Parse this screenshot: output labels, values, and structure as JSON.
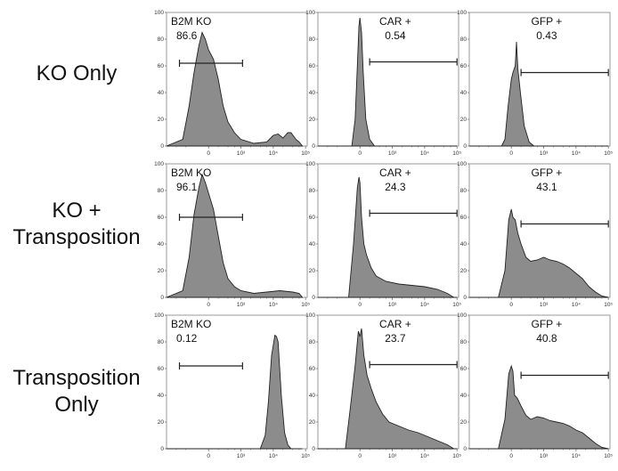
{
  "row_labels": [
    {
      "lines": [
        "KO Only"
      ]
    },
    {
      "lines": [
        "KO +",
        "Transposition"
      ]
    },
    {
      "lines": [
        "Transposition",
        "Only"
      ]
    }
  ],
  "chart_data": {
    "type": "histogram-grid",
    "y_ticks": [
      "0",
      "20",
      "40",
      "60",
      "80",
      "100"
    ],
    "x_tick_labels": {
      "B2M": [
        "0",
        "10³",
        "10⁴",
        "10⁵"
      ],
      "CAR": [
        "0",
        "10³",
        "10⁴",
        "10⁵"
      ],
      "GFP": [
        "0",
        "10³",
        "10⁴",
        "10⁵"
      ]
    },
    "fill_color": "#8c8c8c",
    "stroke_color": "#222222",
    "panels": [
      {
        "row": 0,
        "col": 0,
        "marker": "B2M",
        "gate_label": "B2M KO",
        "gate_value": "86.6",
        "gate_range": [
          -0.9,
          1.05
        ],
        "gate_y": 62,
        "profile": [
          [
            -1.3,
            0
          ],
          [
            -0.8,
            5
          ],
          [
            -0.6,
            30
          ],
          [
            -0.45,
            55
          ],
          [
            -0.3,
            75
          ],
          [
            -0.2,
            85
          ],
          [
            -0.1,
            80
          ],
          [
            0.0,
            72
          ],
          [
            0.15,
            65
          ],
          [
            0.3,
            50
          ],
          [
            0.45,
            30
          ],
          [
            0.6,
            18
          ],
          [
            0.8,
            10
          ],
          [
            1.0,
            5
          ],
          [
            1.4,
            2
          ],
          [
            1.8,
            3
          ],
          [
            2.0,
            8
          ],
          [
            2.15,
            9
          ],
          [
            2.3,
            6
          ],
          [
            2.45,
            10
          ],
          [
            2.55,
            10
          ],
          [
            2.7,
            5
          ],
          [
            2.8,
            3
          ],
          [
            2.9,
            0
          ]
        ]
      },
      {
        "row": 0,
        "col": 1,
        "marker": "CAR",
        "gate_label": "CAR +",
        "gate_value": "0.54",
        "gate_range": [
          0.3,
          3.0
        ],
        "gate_y": 63,
        "profile": [
          [
            -1.3,
            0
          ],
          [
            -0.25,
            0
          ],
          [
            -0.15,
            20
          ],
          [
            -0.08,
            60
          ],
          [
            -0.03,
            90
          ],
          [
            0.0,
            96
          ],
          [
            0.05,
            85
          ],
          [
            0.1,
            55
          ],
          [
            0.18,
            20
          ],
          [
            0.3,
            5
          ],
          [
            0.45,
            0
          ],
          [
            3.0,
            0
          ]
        ]
      },
      {
        "row": 0,
        "col": 2,
        "marker": "GFP",
        "gate_label": "GFP +",
        "gate_value": "0.43",
        "gate_range": [
          0.3,
          3.0
        ],
        "gate_y": 55,
        "profile": [
          [
            -1.3,
            0
          ],
          [
            -0.3,
            0
          ],
          [
            -0.2,
            5
          ],
          [
            -0.1,
            30
          ],
          [
            0.0,
            50
          ],
          [
            0.05,
            55
          ],
          [
            0.12,
            60
          ],
          [
            0.16,
            78
          ],
          [
            0.2,
            58
          ],
          [
            0.28,
            40
          ],
          [
            0.4,
            15
          ],
          [
            0.55,
            3
          ],
          [
            0.7,
            0
          ],
          [
            3.0,
            0
          ]
        ]
      },
      {
        "row": 1,
        "col": 0,
        "marker": "B2M",
        "gate_label": "B2M KO",
        "gate_value": "96.1",
        "gate_range": [
          -0.9,
          1.05
        ],
        "gate_y": 60,
        "profile": [
          [
            -1.3,
            0
          ],
          [
            -0.8,
            5
          ],
          [
            -0.6,
            30
          ],
          [
            -0.45,
            62
          ],
          [
            -0.3,
            82
          ],
          [
            -0.2,
            92
          ],
          [
            -0.1,
            86
          ],
          [
            0.0,
            78
          ],
          [
            0.15,
            66
          ],
          [
            0.3,
            46
          ],
          [
            0.45,
            26
          ],
          [
            0.6,
            14
          ],
          [
            0.8,
            8
          ],
          [
            1.0,
            5
          ],
          [
            1.4,
            3
          ],
          [
            1.8,
            4
          ],
          [
            2.2,
            5
          ],
          [
            2.6,
            4
          ],
          [
            2.8,
            3
          ],
          [
            2.9,
            0
          ]
        ]
      },
      {
        "row": 1,
        "col": 1,
        "marker": "CAR",
        "gate_label": "CAR +",
        "gate_value": "24.3",
        "gate_range": [
          0.3,
          3.0
        ],
        "gate_y": 63,
        "profile": [
          [
            -1.3,
            0
          ],
          [
            -0.35,
            0
          ],
          [
            -0.2,
            40
          ],
          [
            -0.08,
            82
          ],
          [
            -0.03,
            90
          ],
          [
            0.0,
            86
          ],
          [
            0.05,
            60
          ],
          [
            0.12,
            40
          ],
          [
            0.2,
            32
          ],
          [
            0.35,
            22
          ],
          [
            0.5,
            16
          ],
          [
            0.8,
            12
          ],
          [
            1.2,
            10
          ],
          [
            1.6,
            9
          ],
          [
            2.0,
            8
          ],
          [
            2.4,
            6
          ],
          [
            2.7,
            3
          ],
          [
            2.9,
            0
          ],
          [
            3.0,
            0
          ]
        ]
      },
      {
        "row": 1,
        "col": 2,
        "marker": "GFP",
        "gate_label": "GFP +",
        "gate_value": "43.1",
        "gate_range": [
          0.3,
          3.0
        ],
        "gate_y": 55,
        "profile": [
          [
            -1.3,
            0
          ],
          [
            -0.4,
            0
          ],
          [
            -0.2,
            20
          ],
          [
            -0.08,
            58
          ],
          [
            0.0,
            66
          ],
          [
            0.05,
            60
          ],
          [
            0.12,
            58
          ],
          [
            0.2,
            48
          ],
          [
            0.3,
            40
          ],
          [
            0.45,
            30
          ],
          [
            0.6,
            27
          ],
          [
            0.8,
            28
          ],
          [
            1.0,
            30
          ],
          [
            1.2,
            28
          ],
          [
            1.4,
            27
          ],
          [
            1.6,
            25
          ],
          [
            1.8,
            22
          ],
          [
            2.0,
            18
          ],
          [
            2.2,
            14
          ],
          [
            2.4,
            8
          ],
          [
            2.6,
            4
          ],
          [
            2.8,
            1
          ],
          [
            3.0,
            0
          ]
        ]
      },
      {
        "row": 2,
        "col": 0,
        "marker": "B2M",
        "gate_label": "B2M KO",
        "gate_value": "0.12",
        "gate_range": [
          -0.9,
          1.05
        ],
        "gate_y": 62,
        "profile": [
          [
            -1.3,
            0
          ],
          [
            1.6,
            0
          ],
          [
            1.75,
            10
          ],
          [
            1.85,
            35
          ],
          [
            1.95,
            70
          ],
          [
            2.05,
            85
          ],
          [
            2.1,
            84
          ],
          [
            2.15,
            80
          ],
          [
            2.25,
            40
          ],
          [
            2.35,
            12
          ],
          [
            2.45,
            3
          ],
          [
            2.55,
            0
          ],
          [
            2.9,
            0
          ]
        ]
      },
      {
        "row": 2,
        "col": 1,
        "marker": "CAR",
        "gate_label": "CAR +",
        "gate_value": "23.7",
        "gate_range": [
          0.3,
          3.0
        ],
        "gate_y": 63,
        "profile": [
          [
            -1.3,
            0
          ],
          [
            -0.45,
            0
          ],
          [
            -0.3,
            30
          ],
          [
            -0.15,
            62
          ],
          [
            -0.05,
            88
          ],
          [
            0.0,
            84
          ],
          [
            0.05,
            90
          ],
          [
            0.12,
            70
          ],
          [
            0.22,
            55
          ],
          [
            0.35,
            45
          ],
          [
            0.5,
            35
          ],
          [
            0.7,
            26
          ],
          [
            0.9,
            20
          ],
          [
            1.2,
            17
          ],
          [
            1.5,
            14
          ],
          [
            1.8,
            12
          ],
          [
            2.1,
            9
          ],
          [
            2.4,
            6
          ],
          [
            2.7,
            3
          ],
          [
            2.9,
            0
          ],
          [
            3.0,
            0
          ]
        ]
      },
      {
        "row": 2,
        "col": 2,
        "marker": "GFP",
        "gate_label": "GFP +",
        "gate_value": "40.8",
        "gate_range": [
          0.3,
          3.0
        ],
        "gate_y": 55,
        "profile": [
          [
            -1.3,
            0
          ],
          [
            -0.4,
            0
          ],
          [
            -0.2,
            22
          ],
          [
            -0.08,
            56
          ],
          [
            0.0,
            62
          ],
          [
            0.05,
            58
          ],
          [
            0.1,
            40
          ],
          [
            0.18,
            38
          ],
          [
            0.3,
            32
          ],
          [
            0.45,
            25
          ],
          [
            0.6,
            22
          ],
          [
            0.8,
            24
          ],
          [
            1.0,
            23
          ],
          [
            1.2,
            21
          ],
          [
            1.4,
            20
          ],
          [
            1.6,
            19
          ],
          [
            1.8,
            17
          ],
          [
            2.0,
            14
          ],
          [
            2.2,
            12
          ],
          [
            2.4,
            8
          ],
          [
            2.6,
            4
          ],
          [
            2.8,
            1
          ],
          [
            3.0,
            0
          ]
        ]
      }
    ]
  }
}
